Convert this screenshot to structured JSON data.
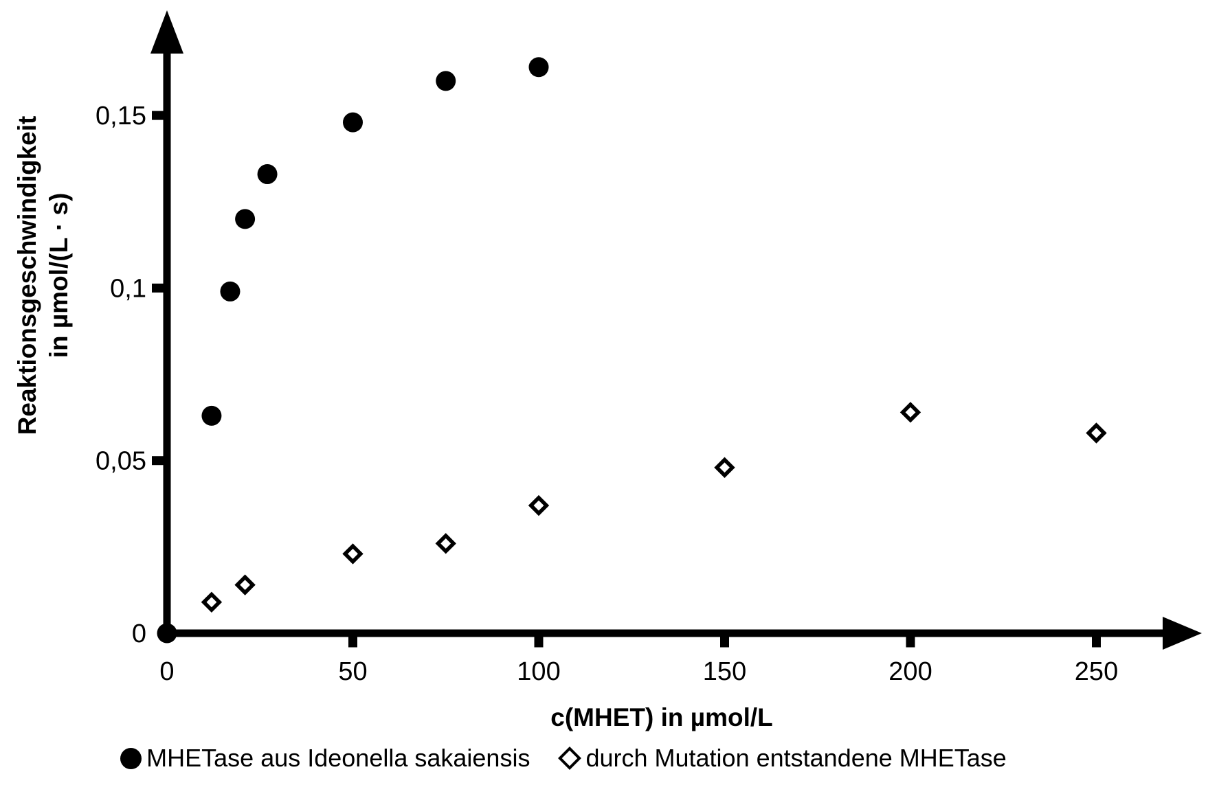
{
  "figure": {
    "background": "#ffffff",
    "color": "#000000"
  },
  "axes": {
    "x": {
      "title": "c(MHET) in µmol/L",
      "tick_labels": [
        "0",
        "50",
        "100",
        "150",
        "200",
        "250"
      ]
    },
    "y": {
      "title_line1": "Reaktionsgeschwindigkeit",
      "title_line2": "in µmol/(L · s)",
      "tick_labels": [
        "0",
        "0,05",
        "0,1",
        "0,15"
      ]
    }
  },
  "legend": [
    {
      "marker": "filled-circle",
      "label": "MHETase aus Ideonella sakaiensis"
    },
    {
      "marker": "open-diamond",
      "label": "durch Mutation entstandene MHETase"
    }
  ],
  "chart_data": {
    "type": "scatter",
    "title": "",
    "xlabel": "c(MHET) in µmol/L",
    "ylabel": "Reaktionsgeschwindigkeit in µmol/(L · s)",
    "xlim": [
      0,
      278
    ],
    "ylim": [
      0,
      0.178
    ],
    "grid": false,
    "legend_position": "bottom",
    "marker_color": "#000000",
    "x_ticks": [
      {
        "v": 0,
        "label": "0"
      },
      {
        "v": 50,
        "label": "50"
      },
      {
        "v": 100,
        "label": "100"
      },
      {
        "v": 150,
        "label": "150"
      },
      {
        "v": 200,
        "label": "200"
      },
      {
        "v": 250,
        "label": "250"
      }
    ],
    "y_ticks": [
      {
        "v": 0,
        "label": "0"
      },
      {
        "v": 0.05,
        "label": "0,05"
      },
      {
        "v": 0.1,
        "label": "0,1"
      },
      {
        "v": 0.15,
        "label": "0,15"
      }
    ],
    "series": [
      {
        "name": "MHETase aus Ideonella sakaiensis",
        "marker": "filled-circle",
        "points": [
          [
            0,
            0
          ],
          [
            12,
            0.063
          ],
          [
            17,
            0.099
          ],
          [
            21,
            0.12
          ],
          [
            27,
            0.133
          ],
          [
            50,
            0.148
          ],
          [
            75,
            0.16
          ],
          [
            100,
            0.164
          ]
        ]
      },
      {
        "name": "durch Mutation entstandene MHETase",
        "marker": "open-diamond",
        "points": [
          [
            12,
            0.009
          ],
          [
            21,
            0.014
          ],
          [
            50,
            0.023
          ],
          [
            75,
            0.026
          ],
          [
            100,
            0.037
          ],
          [
            150,
            0.048
          ],
          [
            200,
            0.064
          ],
          [
            250,
            0.058
          ]
        ]
      }
    ]
  }
}
